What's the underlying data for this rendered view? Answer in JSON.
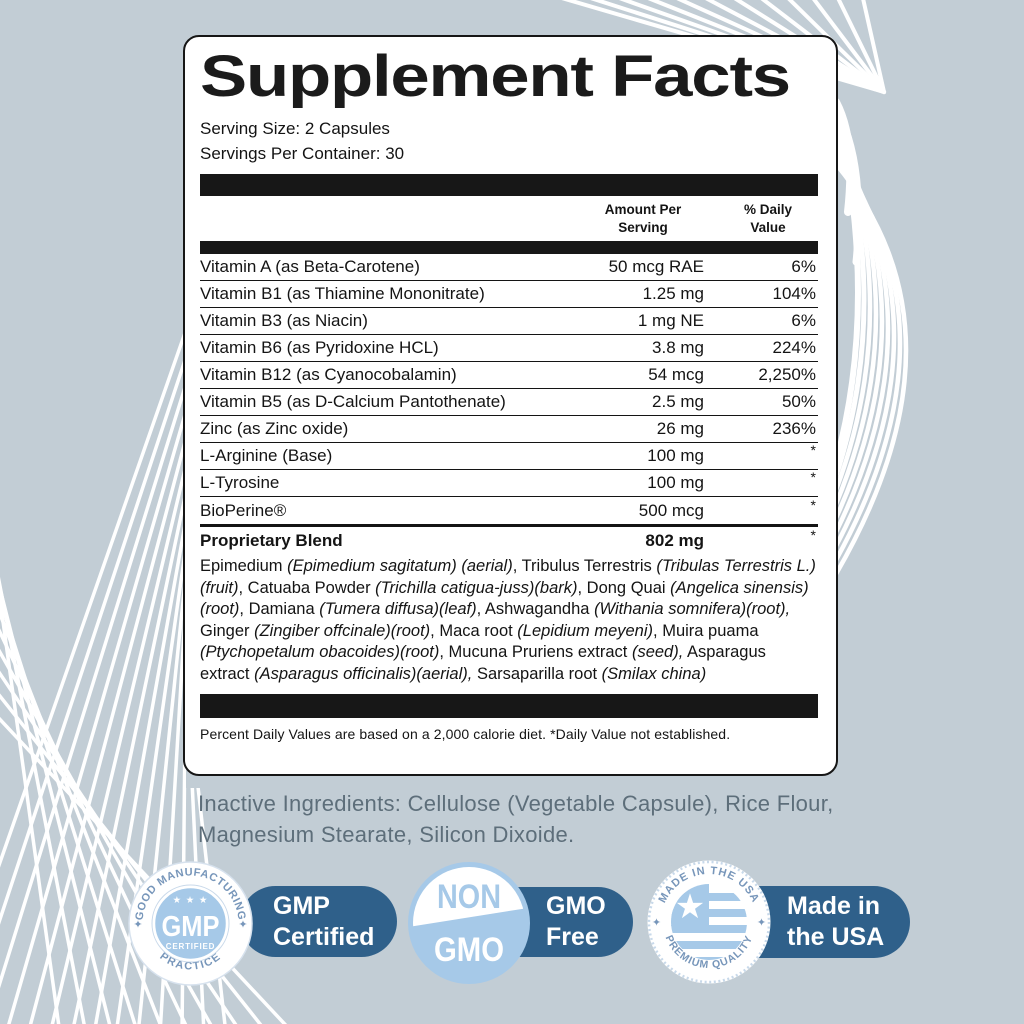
{
  "label": {
    "title": "Supplement Facts",
    "serving_size": "Serving Size: 2 Capsules",
    "servings_per_container": "Servings Per Container: 30",
    "col_amount": "Amount Per\nServing",
    "col_dv": "% Daily\nValue",
    "rows": [
      {
        "name": "Vitamin A (as Beta-Carotene)",
        "amount": "50 mcg RAE",
        "dv": "6%"
      },
      {
        "name": "Vitamin B1 (as Thiamine Mononitrate)",
        "amount": "1.25 mg",
        "dv": "104%"
      },
      {
        "name": "Vitamin B3 (as Niacin)",
        "amount": "1 mg NE",
        "dv": "6%"
      },
      {
        "name": "Vitamin B6 (as Pyridoxine HCL)",
        "amount": "3.8 mg",
        "dv": "224%"
      },
      {
        "name": "Vitamin B12 (as Cyanocobalamin)",
        "amount": "54 mcg",
        "dv": "2,250%"
      },
      {
        "name": "Vitamin B5 (as D-Calcium Pantothenate)",
        "amount": "2.5 mg",
        "dv": "50%"
      },
      {
        "name": "Zinc (as Zinc oxide)",
        "amount": "26 mg",
        "dv": "236%"
      },
      {
        "name": "L-Arginine (Base)",
        "amount": "100 mg",
        "dv": "*"
      },
      {
        "name": "L-Tyrosine",
        "amount": "100 mg",
        "dv": "*"
      },
      {
        "name": "BioPerine®",
        "amount": "500 mcg",
        "dv": "*"
      }
    ],
    "blend": {
      "name": "Proprietary Blend",
      "amount": "802 mg",
      "dv": "*",
      "segments": [
        {
          "t": "Epimedium ",
          "i": false
        },
        {
          "t": "(Epimedium sagitatum) (aerial)",
          "i": true
        },
        {
          "t": ", Tribulus Terrestris ",
          "i": false
        },
        {
          "t": "(Tribulas Terrestris L.) (fruit)",
          "i": true
        },
        {
          "t": ", Catuaba Powder ",
          "i": false
        },
        {
          "t": "(Trichilla catigua-juss)(bark)",
          "i": true
        },
        {
          "t": ", Dong Quai ",
          "i": false
        },
        {
          "t": "(Angelica sinensis)(root)",
          "i": true
        },
        {
          "t": ", Damiana ",
          "i": false
        },
        {
          "t": "(Tumera diffusa)(leaf)",
          "i": true
        },
        {
          "t": ", Ashwagandha ",
          "i": false
        },
        {
          "t": "(Withania somnifera)(root),",
          "i": true
        },
        {
          "t": " Ginger ",
          "i": false
        },
        {
          "t": "(Zingiber offcinale)(root)",
          "i": true
        },
        {
          "t": ", Maca root ",
          "i": false
        },
        {
          "t": "(Lepidium meyeni)",
          "i": true
        },
        {
          "t": ", Muira puama ",
          "i": false
        },
        {
          "t": "(Ptychopetalum obacoides)(root)",
          "i": true
        },
        {
          "t": ", Mucuna Pruriens extract ",
          "i": false
        },
        {
          "t": "(seed),",
          "i": true
        },
        {
          "t": " Asparagus extract ",
          "i": false
        },
        {
          "t": "(Asparagus officinalis)(aerial),",
          "i": true
        },
        {
          "t": " Sarsaparilla root ",
          "i": false
        },
        {
          "t": "(Smilax china)",
          "i": true
        }
      ]
    },
    "footnote": "Percent Daily Values are based on a 2,000 calorie diet. *Daily Value not established."
  },
  "inactive_ingredients": "Inactive Ingredients: Cellulose (Vegetable Capsule), Rice Flour, Magnesium Stearate, Silicon Dixoide.",
  "badges": {
    "gmp": {
      "arc_top": "GOOD MANUFACTURING",
      "arc_bottom": "PRACTICE",
      "stars": "★ ★ ★",
      "acronym": "GMP",
      "sub": "CERTIFIED",
      "side_star": "✦",
      "pill_line1": "GMP",
      "pill_line2": "Certified"
    },
    "non_gmo": {
      "top": "NON",
      "bottom": "GMO",
      "pill_line1": "GMO",
      "pill_line2": "Free"
    },
    "usa": {
      "arc_top": "MADE IN THE USA",
      "arc_bottom": "PREMIUM QUALITY",
      "side_star": "✦",
      "flag_star": "★",
      "pill_line1": "Made in",
      "pill_line2": "the USA"
    }
  },
  "colors": {
    "background": "#c2cdd5",
    "card_background": "#ffffff",
    "ink": "#141414",
    "pill_blue": "#2f608a",
    "seal_light_blue": "#a6c9e8",
    "seal_arc_text": "#7796ba",
    "inactive_text": "#5d6e7a",
    "deco_lines": "#ffffff"
  }
}
